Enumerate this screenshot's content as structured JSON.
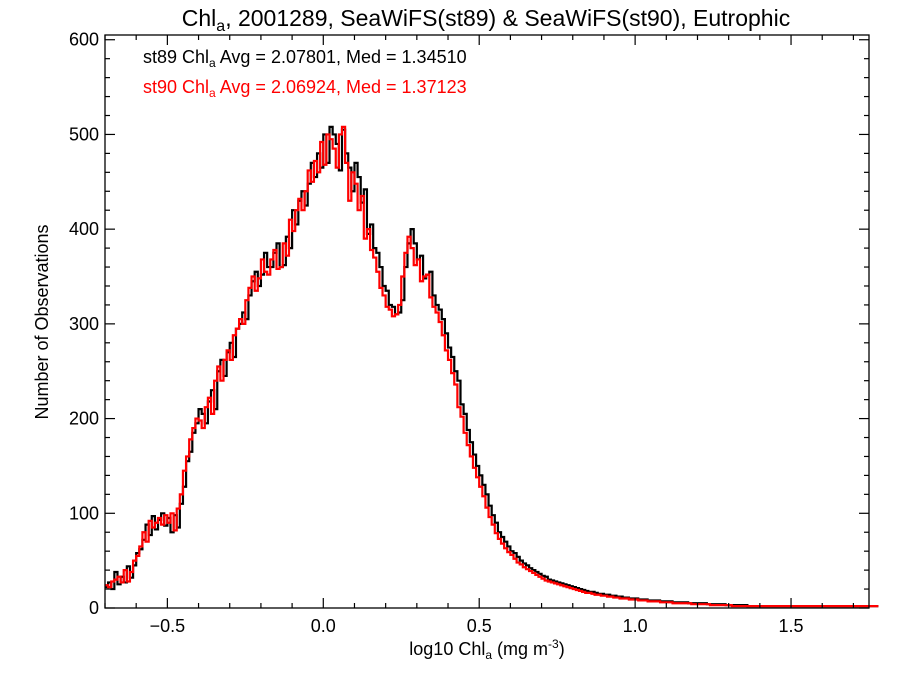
{
  "chart_data": {
    "type": "histogram-step",
    "title": {
      "pre": "Chl",
      "sub": "a",
      "post": ", 2001289, SeaWiFS(st89) & SeaWiFS(st90), Eutrophic"
    },
    "xlabel": {
      "pre": "log10 Chl",
      "sub": "a",
      "mid": " (mg m",
      "sup": "-3",
      "post": ")"
    },
    "ylabel": "Number of Observations",
    "xlim": [
      -0.7,
      1.75
    ],
    "ylim": [
      0,
      605
    ],
    "x_ticks": [
      -0.5,
      0.0,
      0.5,
      1.0,
      1.5
    ],
    "x_tick_labels": [
      "−0.5",
      "0.0",
      "0.5",
      "1.0",
      "1.5"
    ],
    "y_ticks": [
      0,
      100,
      200,
      300,
      400,
      500,
      600
    ],
    "y_tick_labels": [
      "0",
      "100",
      "200",
      "300",
      "400",
      "500",
      "600"
    ],
    "bin_width": 0.01,
    "bin_start": -0.7,
    "annotations": [
      {
        "pre": "st89 Chl",
        "sub": "a",
        "post": " Avg = 2.07801, Med = 1.34510",
        "color": "#000000"
      },
      {
        "pre": "st90 Chl",
        "sub": "a",
        "post": " Avg = 2.06924, Med = 1.37123",
        "color": "#ff0000"
      }
    ],
    "series": [
      {
        "color": "#000000",
        "values": [
          22,
          27,
          20,
          38,
          25,
          33,
          27,
          44,
          32,
          45,
          58,
          62,
          72,
          88,
          77,
          97,
          83,
          93,
          100,
          87,
          95,
          80,
          98,
          85,
          110,
          128,
          155,
          165,
          185,
          195,
          210,
          205,
          195,
          218,
          230,
          210,
          250,
          262,
          245,
          270,
          280,
          265,
          295,
          300,
          312,
          305,
          330,
          345,
          355,
          340,
          352,
          375,
          360,
          360,
          375,
          385,
          360,
          362,
          392,
          380,
          420,
          405,
          430,
          440,
          425,
          448,
          470,
          455,
          480,
          465,
          500,
          470,
          508,
          500,
          490,
          462,
          505,
          480,
          465,
          440,
          470,
          455,
          428,
          442,
          395,
          405,
          380,
          375,
          360,
          340,
          335,
          320,
          318,
          310,
          312,
          325,
          360,
          385,
          400,
          385,
          368,
          372,
          348,
          352,
          355,
          330,
          320,
          315,
          305,
          290,
          275,
          265,
          250,
          240,
          215,
          205,
          188,
          175,
          162,
          150,
          140,
          130,
          120,
          108,
          98,
          90,
          80,
          75,
          70,
          65,
          60,
          58,
          54,
          50,
          47,
          45,
          42,
          40,
          38,
          36,
          34,
          33,
          30,
          29,
          28,
          27,
          26,
          25,
          24,
          23,
          22,
          21,
          20,
          19,
          18,
          17,
          17,
          16,
          15,
          15,
          14,
          14,
          13,
          13,
          12,
          12,
          11,
          11,
          10,
          10,
          10,
          9,
          9,
          9,
          8,
          8,
          8,
          8,
          7,
          7,
          7,
          7,
          6,
          6,
          6,
          6,
          6,
          5,
          5,
          5,
          5,
          5,
          5,
          4,
          4,
          4,
          4,
          4,
          4,
          3,
          3,
          3,
          3,
          3,
          3,
          3,
          2,
          2,
          2,
          2,
          2,
          2,
          2,
          2,
          2,
          2,
          2,
          2,
          2,
          2,
          2,
          2,
          2,
          2,
          2,
          2,
          2,
          2,
          2,
          2,
          2,
          2,
          2,
          2,
          2,
          2,
          2,
          2,
          2,
          2,
          2,
          2,
          2,
          2,
          2,
          2,
          2,
          2
        ]
      },
      {
        "color": "#ff0000",
        "values": [
          24,
          22,
          28,
          30,
          33,
          27,
          40,
          28,
          38,
          50,
          55,
          65,
          80,
          70,
          92,
          85,
          90,
          95,
          88,
          98,
          90,
          100,
          82,
          105,
          120,
          145,
          160,
          178,
          190,
          200,
          198,
          190,
          212,
          222,
          205,
          240,
          255,
          240,
          262,
          272,
          262,
          288,
          295,
          305,
          300,
          325,
          338,
          350,
          335,
          348,
          368,
          355,
          352,
          368,
          378,
          358,
          360,
          385,
          372,
          410,
          398,
          420,
          432,
          420,
          440,
          462,
          450,
          472,
          460,
          492,
          468,
          500,
          495,
          485,
          465,
          500,
          508,
          470,
          430,
          460,
          448,
          420,
          435,
          390,
          400,
          378,
          370,
          355,
          338,
          330,
          318,
          315,
          308,
          310,
          320,
          350,
          375,
          392,
          380,
          362,
          368,
          345,
          350,
          352,
          328,
          318,
          312,
          302,
          288,
          272,
          262,
          248,
          236,
          212,
          202,
          185,
          172,
          160,
          148,
          138,
          128,
          118,
          106,
          96,
          88,
          79,
          73,
          68,
          63,
          59,
          56,
          52,
          48,
          46,
          43,
          41,
          39,
          37,
          35,
          33,
          31,
          29,
          28,
          27,
          26,
          25,
          24,
          23,
          22,
          21,
          20,
          19,
          18,
          17,
          16,
          16,
          15,
          14,
          14,
          13,
          13,
          12,
          12,
          11,
          11,
          10,
          10,
          10,
          9,
          9,
          9,
          8,
          8,
          8,
          7,
          7,
          7,
          7,
          6,
          6,
          6,
          6,
          5,
          5,
          5,
          5,
          5,
          5,
          4,
          4,
          4,
          4,
          4,
          4,
          3,
          3,
          3,
          3,
          3,
          3,
          3,
          2,
          2,
          2,
          2,
          2,
          2,
          2,
          2,
          2,
          2,
          2,
          2,
          2,
          2,
          2,
          2,
          2,
          2,
          2,
          2,
          2,
          2,
          2,
          2,
          2,
          2,
          2,
          2,
          2,
          2,
          2,
          2,
          2,
          2,
          2,
          2,
          2,
          2,
          2,
          2,
          2,
          2,
          2,
          2,
          2,
          2,
          2
        ]
      }
    ]
  }
}
